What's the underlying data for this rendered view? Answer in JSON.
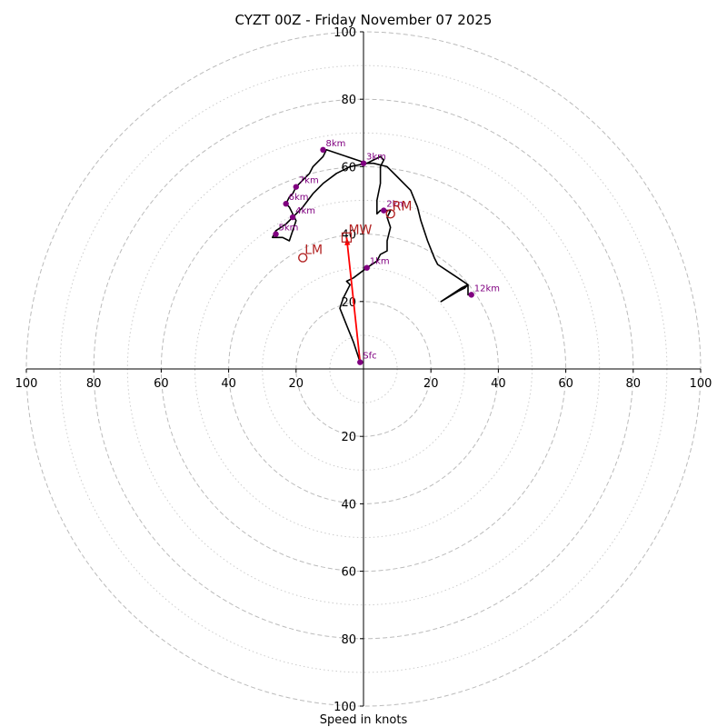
{
  "chart_data": {
    "type": "hodograph",
    "title": "CYZT 00Z - Friday November 07 2025",
    "xlabel": "Speed in knots",
    "units": "knots",
    "range": [
      -100,
      100
    ],
    "major_rings": [
      20,
      40,
      60,
      80,
      100
    ],
    "minor_rings": [
      10,
      30,
      50,
      70,
      90
    ],
    "x_ticks": [
      {
        "value": -100,
        "label": "100"
      },
      {
        "value": -80,
        "label": "80"
      },
      {
        "value": -60,
        "label": "60"
      },
      {
        "value": -40,
        "label": "40"
      },
      {
        "value": -20,
        "label": "20"
      },
      {
        "value": 20,
        "label": "20"
      },
      {
        "value": 40,
        "label": "40"
      },
      {
        "value": 60,
        "label": "60"
      },
      {
        "value": 80,
        "label": "80"
      },
      {
        "value": 100,
        "label": "100"
      }
    ],
    "y_ticks": [
      {
        "value": 100,
        "label": "100"
      },
      {
        "value": 80,
        "label": "80"
      },
      {
        "value": 60,
        "label": "60"
      },
      {
        "value": 40,
        "label": "40"
      },
      {
        "value": 20,
        "label": "20"
      },
      {
        "value": -20,
        "label": "20"
      },
      {
        "value": -40,
        "label": "40"
      },
      {
        "value": -60,
        "label": "60"
      },
      {
        "value": -80,
        "label": "80"
      },
      {
        "value": -100,
        "label": "100"
      }
    ],
    "trace": [
      [
        -1,
        2
      ],
      [
        -3,
        8
      ],
      [
        -5,
        13
      ],
      [
        -7,
        18
      ],
      [
        -6,
        21
      ],
      [
        -4,
        25
      ],
      [
        -5,
        26
      ],
      [
        -3,
        27
      ],
      [
        1,
        30
      ],
      [
        4,
        32
      ],
      [
        5,
        34
      ],
      [
        7,
        35
      ],
      [
        7,
        38
      ],
      [
        8,
        42
      ],
      [
        7,
        45
      ],
      [
        8,
        47
      ],
      [
        6,
        47
      ],
      [
        5,
        47
      ],
      [
        4,
        46
      ],
      [
        4,
        50
      ],
      [
        5,
        55
      ],
      [
        5,
        60
      ],
      [
        6,
        62
      ],
      [
        5,
        63
      ],
      [
        3,
        62
      ],
      [
        1,
        61
      ],
      [
        -2,
        62
      ],
      [
        -11,
        65
      ],
      [
        -12,
        63
      ],
      [
        -15,
        60
      ],
      [
        -16,
        58
      ],
      [
        -18,
        56
      ],
      [
        -20,
        54
      ],
      [
        -21,
        52
      ],
      [
        -22,
        51
      ],
      [
        -23,
        49
      ],
      [
        -22,
        48
      ],
      [
        -21,
        46
      ],
      [
        -20,
        44
      ],
      [
        -21,
        41
      ],
      [
        -22,
        38
      ],
      [
        -24,
        39
      ],
      [
        -27,
        39
      ],
      [
        -26,
        41
      ],
      [
        -23,
        43
      ],
      [
        -18,
        48
      ],
      [
        -15,
        52
      ],
      [
        -12,
        55
      ],
      [
        -8,
        58
      ],
      [
        -4,
        60
      ],
      [
        1,
        61
      ],
      [
        3,
        61
      ],
      [
        7,
        60
      ],
      [
        10,
        57
      ],
      [
        14,
        53
      ],
      [
        16,
        48
      ],
      [
        17,
        44
      ],
      [
        19,
        38
      ],
      [
        21,
        33
      ],
      [
        22,
        31
      ],
      [
        25,
        29
      ],
      [
        28,
        27
      ],
      [
        31,
        25
      ],
      [
        30,
        24
      ],
      [
        28,
        23
      ],
      [
        23,
        20
      ],
      [
        26,
        22
      ],
      [
        29,
        24
      ],
      [
        31,
        25
      ],
      [
        31,
        22
      ],
      [
        32,
        22
      ]
    ],
    "levels": [
      {
        "label": "Sfc",
        "u": -1,
        "v": 2
      },
      {
        "label": "1km",
        "u": 1,
        "v": 30
      },
      {
        "label": "2km",
        "u": 6,
        "v": 47
      },
      {
        "label": "3km",
        "u": 0,
        "v": 61
      },
      {
        "label": "4km",
        "u": -21,
        "v": 45
      },
      {
        "label": "5km",
        "u": -26,
        "v": 40
      },
      {
        "label": "6km",
        "u": -23,
        "v": 49
      },
      {
        "label": "7km",
        "u": -20,
        "v": 54
      },
      {
        "label": "8km",
        "u": -12,
        "v": 65
      },
      {
        "label": "12km",
        "u": 32,
        "v": 22
      }
    ],
    "storm_motions": [
      {
        "label": "RM",
        "u": 8,
        "v": 46
      },
      {
        "label": "LM",
        "u": -18,
        "v": 33
      },
      {
        "label": "MW",
        "u": -5,
        "v": 39
      }
    ],
    "mean_wind_vector": {
      "from": [
        -1,
        2
      ],
      "to": [
        -5,
        39
      ]
    },
    "colors": {
      "trace": "#000000",
      "levels": "#800080",
      "motion": "#b22222",
      "vector": "#ff0000",
      "major_ring": "#bbbbbb",
      "minor_ring": "#cccccc",
      "axis": "#000000"
    }
  }
}
